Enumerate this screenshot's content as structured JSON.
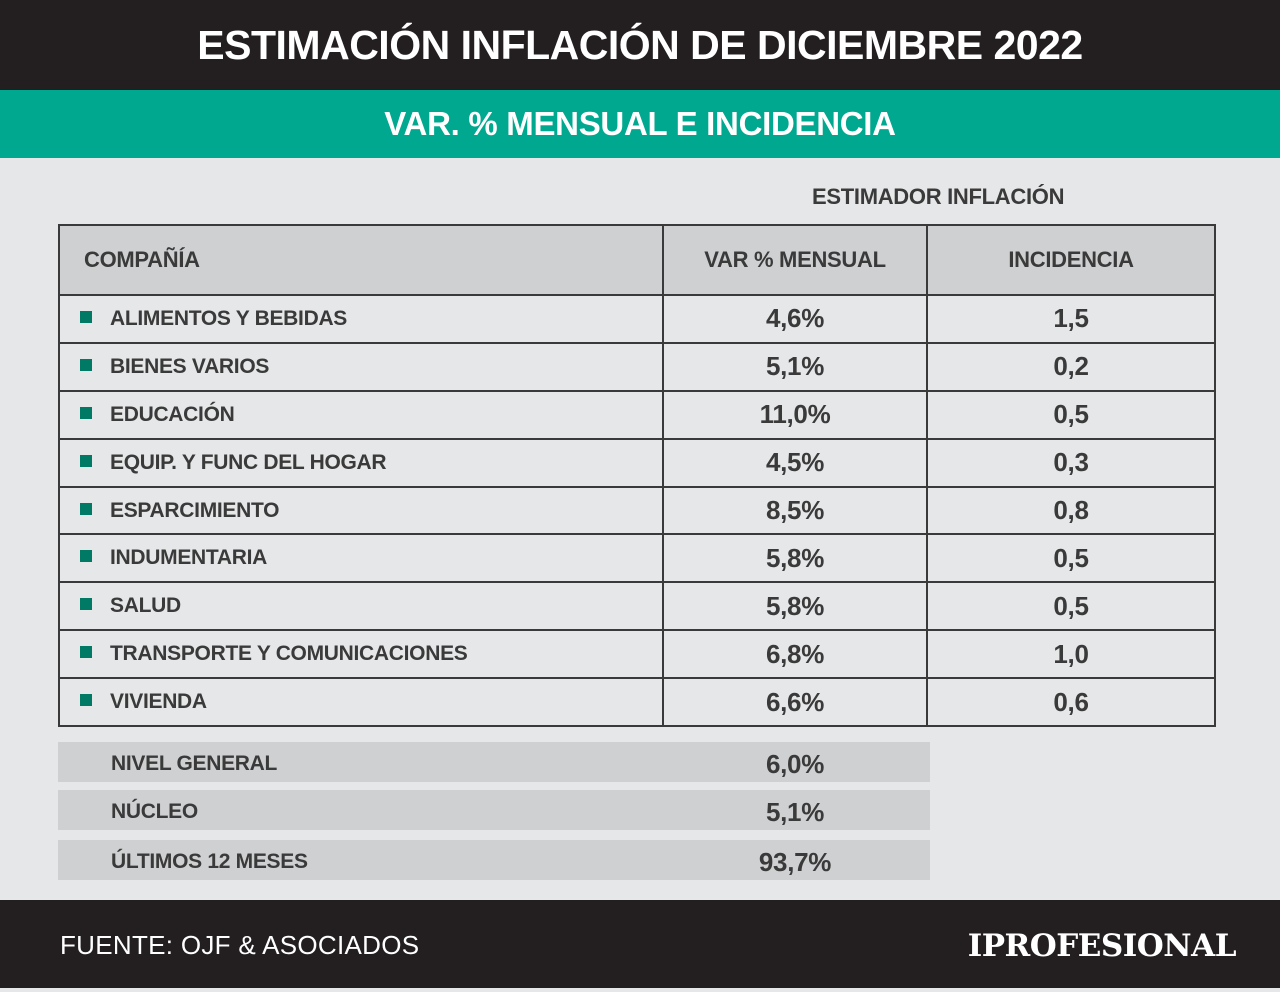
{
  "title": "ESTIMACIÓN INFLACIÓN DE DICIEMBRE 2022",
  "subtitle": "VAR. % MENSUAL E INCIDENCIA",
  "estimator_label": "ESTIMADOR INFLACIÓN",
  "colors": {
    "header_bg": "#231f20",
    "accent": "#00a88f",
    "bullet": "#007a64"
  },
  "chart_data": {
    "type": "table",
    "columns": [
      "COMPAÑÍA",
      "VAR % MENSUAL",
      "INCIDENCIA"
    ],
    "rows": [
      [
        "ALIMENTOS Y BEBIDAS",
        "4,6%",
        "1,5"
      ],
      [
        "BIENES VARIOS",
        "5,1%",
        "0,2"
      ],
      [
        "EDUCACIÓN",
        "11,0%",
        "0,5"
      ],
      [
        "EQUIP. Y FUNC DEL HOGAR",
        "4,5%",
        "0,3"
      ],
      [
        "ESPARCIMIENTO",
        "8,5%",
        "0,8"
      ],
      [
        "INDUMENTARIA",
        "5,8%",
        "0,5"
      ],
      [
        "SALUD",
        "5,8%",
        "0,5"
      ],
      [
        "TRANSPORTE Y COMUNICACIONES",
        "6,8%",
        "1,0"
      ],
      [
        "VIVIENDA",
        "6,6%",
        "0,6"
      ]
    ],
    "summary": [
      [
        "NIVEL GENERAL",
        "6,0%"
      ],
      [
        "NÚCLEO",
        "5,1%"
      ],
      [
        "ÚLTIMOS 12 MESES",
        "93,7%"
      ]
    ]
  },
  "footer": {
    "source": "FUENTE: OJF & ASOCIADOS",
    "logo": "IPROFESIONAL"
  }
}
